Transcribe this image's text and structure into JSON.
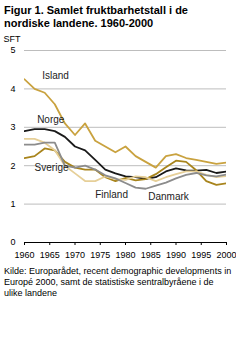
{
  "chart_data": {
    "type": "line",
    "title": "Figur 1. Samlet fruktbarhetstall i de nordiske landene. 1960-2000",
    "y_label": "SFT",
    "source": "Kilde: Europarådet, recent demographic developments in Europé 2000, samt de statistiske sentralbyråene i de ulike landene",
    "x": [
      1960,
      1962,
      1964,
      1966,
      1968,
      1970,
      1972,
      1974,
      1976,
      1978,
      1980,
      1982,
      1984,
      1986,
      1988,
      1990,
      1992,
      1994,
      1996,
      1998,
      2000
    ],
    "series": [
      {
        "name": "Island",
        "color": "#c9a23f",
        "values": [
          4.25,
          4.0,
          3.9,
          3.6,
          3.1,
          2.8,
          3.1,
          2.65,
          2.5,
          2.35,
          2.5,
          2.25,
          2.1,
          1.95,
          2.25,
          2.3,
          2.2,
          2.15,
          2.1,
          2.05,
          2.08
        ]
      },
      {
        "name": "Norge",
        "color": "#1a1a1a",
        "values": [
          2.9,
          2.95,
          2.95,
          2.9,
          2.75,
          2.5,
          2.4,
          2.15,
          1.9,
          1.8,
          1.72,
          1.7,
          1.66,
          1.7,
          1.85,
          1.93,
          1.88,
          1.87,
          1.89,
          1.81,
          1.85
        ]
      },
      {
        "name": "Sverige",
        "color": "#a8841c",
        "values": [
          2.2,
          2.25,
          2.45,
          2.4,
          2.1,
          1.95,
          1.9,
          1.9,
          1.7,
          1.6,
          1.68,
          1.62,
          1.65,
          1.78,
          1.96,
          2.13,
          2.1,
          1.88,
          1.6,
          1.5,
          1.54
        ]
      },
      {
        "name": "Finland",
        "color": "#e6cf98",
        "values": [
          2.7,
          2.7,
          2.6,
          2.4,
          2.0,
          1.8,
          1.6,
          1.6,
          1.72,
          1.65,
          1.63,
          1.72,
          1.7,
          1.6,
          1.7,
          1.78,
          1.85,
          1.85,
          1.76,
          1.7,
          1.73
        ]
      },
      {
        "name": "Danmark",
        "color": "#8c8c8c",
        "values": [
          2.55,
          2.55,
          2.6,
          2.6,
          2.0,
          1.95,
          2.0,
          1.9,
          1.75,
          1.67,
          1.55,
          1.43,
          1.4,
          1.48,
          1.56,
          1.67,
          1.76,
          1.81,
          1.75,
          1.72,
          1.77
        ]
      }
    ],
    "xlim": [
      1960,
      2000
    ],
    "xticks": [
      1960,
      1965,
      1970,
      1975,
      1980,
      1985,
      1990,
      1995,
      2000
    ],
    "ylim": [
      0,
      5
    ],
    "yticks": [
      0,
      1,
      2,
      3,
      4,
      5
    ],
    "grid": true
  }
}
